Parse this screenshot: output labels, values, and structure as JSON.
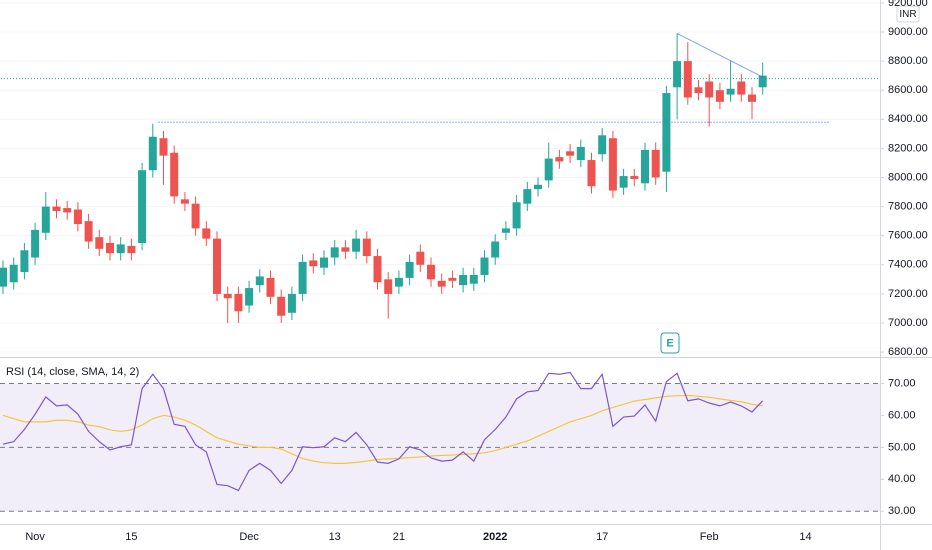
{
  "chart_data": {
    "type": "candlestick",
    "currency": "INR",
    "earnings_marker": "E",
    "categories": [
      null,
      null,
      null,
      "Nov",
      null,
      null,
      null,
      null,
      null,
      null,
      null,
      null,
      "15",
      null,
      null,
      null,
      null,
      null,
      null,
      null,
      null,
      null,
      null,
      "Dec",
      null,
      null,
      null,
      null,
      null,
      null,
      null,
      "13",
      null,
      null,
      null,
      null,
      null,
      "21",
      null,
      null,
      null,
      null,
      null,
      null,
      null,
      null,
      "2022",
      null,
      null,
      null,
      null,
      null,
      null,
      null,
      null,
      null,
      "17",
      null,
      null,
      null,
      null,
      null,
      null,
      null,
      null,
      null,
      "Feb",
      null,
      null,
      null,
      null,
      null,
      null,
      null,
      null,
      "14"
    ],
    "open": [
      7250,
      7280,
      7350,
      7450,
      7620,
      7800,
      7790,
      7780,
      7700,
      7590,
      7550,
      7480,
      7530,
      7550,
      8050,
      8270,
      8170,
      7850,
      7820,
      7650,
      7580,
      7200,
      7200,
      7120,
      7260,
      7310,
      7180,
      7070,
      7200,
      7430,
      7380,
      7450,
      7520,
      7490,
      7580,
      7460,
      7300,
      7250,
      7310,
      7490,
      7400,
      7290,
      7310,
      7260,
      7270,
      7330,
      7450,
      7620,
      7650,
      7820,
      7920,
      7980,
      8140,
      8180,
      8120,
      8120,
      8160,
      8270,
      7930,
      8010,
      7960,
      8190,
      8040,
      8620,
      8800,
      8620,
      8660,
      8600,
      8570,
      8660,
      8570,
      8620,
      null,
      null,
      null,
      null
    ],
    "high": [
      7430,
      7450,
      7550,
      7690,
      7900,
      7850,
      7840,
      7830,
      7750,
      7640,
      7600,
      7590,
      7580,
      8100,
      8370,
      8320,
      8220,
      7900,
      7870,
      7700,
      7630,
      7250,
      7250,
      7290,
      7370,
      7360,
      7230,
      7250,
      7470,
      7480,
      7500,
      7570,
      7570,
      7640,
      7630,
      7510,
      7350,
      7360,
      7470,
      7540,
      7450,
      7340,
      7360,
      7380,
      7380,
      7500,
      7610,
      7700,
      7880,
      7970,
      8000,
      8240,
      8190,
      8230,
      8260,
      8170,
      8340,
      8320,
      8060,
      8060,
      8240,
      8240,
      8630,
      8990,
      8930,
      8670,
      8710,
      8650,
      8800,
      8710,
      8620,
      8790,
      null,
      null,
      null,
      null
    ],
    "low": [
      7200,
      7230,
      7300,
      7400,
      7570,
      7720,
      7710,
      7630,
      7510,
      7460,
      7430,
      7430,
      7430,
      7500,
      8000,
      7950,
      7820,
      7770,
      7600,
      7530,
      7150,
      7000,
      7000,
      7070,
      7210,
      7130,
      7000,
      7020,
      7150,
      7340,
      7330,
      7400,
      7440,
      7440,
      7410,
      7230,
      7030,
      7200,
      7260,
      7350,
      7250,
      7200,
      7240,
      7210,
      7220,
      7280,
      7400,
      7570,
      7600,
      7770,
      7870,
      7930,
      8060,
      8100,
      8070,
      7890,
      8110,
      7860,
      7880,
      7940,
      7910,
      7950,
      7900,
      8400,
      8500,
      8530,
      8350,
      8470,
      8520,
      8520,
      8400,
      8570,
      null,
      null,
      null,
      null
    ],
    "close": [
      7380,
      7400,
      7500,
      7640,
      7800,
      7770,
      7760,
      7680,
      7560,
      7510,
      7480,
      7540,
      7480,
      8050,
      8280,
      8150,
      7870,
      7820,
      7650,
      7580,
      7200,
      7170,
      7080,
      7240,
      7320,
      7180,
      7050,
      7200,
      7420,
      7390,
      7450,
      7520,
      7490,
      7580,
      7460,
      7280,
      7200,
      7310,
      7420,
      7400,
      7300,
      7250,
      7290,
      7330,
      7330,
      7450,
      7560,
      7650,
      7830,
      7920,
      7950,
      8130,
      8110,
      8150,
      8210,
      7940,
      8290,
      7910,
      8010,
      7990,
      8190,
      8000,
      8580,
      8800,
      8550,
      8580,
      8550,
      8520,
      8610,
      8570,
      8520,
      8700,
      null,
      null,
      null,
      null
    ],
    "up_color": "#26a69a",
    "down_color": "#ef5350",
    "ylim": [
      6780,
      9220
    ],
    "yticks": [
      {
        "value": 6800,
        "label": "6800.00"
      },
      {
        "value": 7000,
        "label": "7000.00"
      },
      {
        "value": 7200,
        "label": "7200.00"
      },
      {
        "value": 7400,
        "label": "7400.00"
      },
      {
        "value": 7600,
        "label": "7600.00"
      },
      {
        "value": 7800,
        "label": "7800.00"
      },
      {
        "value": 8000,
        "label": "8000.00"
      },
      {
        "value": 8200,
        "label": "8200.00"
      },
      {
        "value": 8400,
        "label": "8400.00"
      },
      {
        "value": 8600,
        "label": "8600.00"
      },
      {
        "value": 8800,
        "label": "8800.00"
      },
      {
        "value": 9000,
        "label": "9000.00"
      },
      {
        "value": 9200,
        "label": "9200.00"
      }
    ],
    "horizontal_lines": [
      {
        "value": 8680,
        "color": "#26a69a",
        "from": 0
      },
      {
        "value": 8380,
        "color": "#2962ff",
        "from": 15
      }
    ],
    "trend_line": {
      "from": [
        63,
        8990
      ],
      "to": [
        71,
        8690
      ],
      "color": "#2962ff"
    },
    "rsi": {
      "title": "RSI (14, close, SMA, 14, 2)",
      "ylim": [
        26,
        78
      ],
      "yticks": [
        {
          "value": 30,
          "label": "30.00"
        },
        {
          "value": 40,
          "label": "40.00"
        },
        {
          "value": 50,
          "label": "50.00"
        },
        {
          "value": 60,
          "label": "60.00"
        },
        {
          "value": 70,
          "label": "70.00"
        }
      ],
      "band": [
        30,
        70
      ],
      "levels": [
        70,
        50,
        30
      ],
      "series": [
        {
          "name": "RSI",
          "color": "#7e57c2",
          "values": [
            51,
            51.8,
            55.6,
            60.4,
            65.8,
            63,
            63.3,
            60.4,
            55,
            51.8,
            49.2,
            50.2,
            50.8,
            68.4,
            72.9,
            68.4,
            57.2,
            56.6,
            50.8,
            48.6,
            38.4,
            38,
            36.5,
            42.8,
            45,
            42.8,
            38.7,
            42.8,
            50.2,
            49.9,
            50.2,
            53,
            51.8,
            54.7,
            50.8,
            45.4,
            45,
            46.4,
            50.2,
            49.2,
            46.7,
            45.7,
            46,
            48.6,
            45.7,
            52.4,
            55.6,
            59.5,
            65.2,
            67.4,
            67.8,
            73.2,
            72.9,
            73.5,
            68.4,
            68.4,
            72.9,
            56.6,
            59.5,
            59.8,
            63.3,
            58.2,
            70.6,
            73.2,
            64.6,
            65.2,
            63.9,
            63,
            64.2,
            63,
            61.1,
            64.6,
            null,
            null,
            null,
            null
          ]
        },
        {
          "name": "SMA",
          "color": "#f5c542",
          "values": [
            60,
            59,
            58,
            58,
            58,
            58.5,
            58.5,
            58,
            57,
            56.5,
            55.5,
            55,
            55.5,
            57,
            59,
            60,
            59.5,
            58.5,
            57,
            55,
            53,
            52,
            51,
            50.5,
            50,
            50,
            49.5,
            48,
            46.5,
            45.7,
            45.2,
            45,
            45,
            45.3,
            45.7,
            46.2,
            46.4,
            46.6,
            46.8,
            47,
            47.3,
            47.5,
            47.6,
            47.8,
            48,
            48.3,
            49,
            50,
            51,
            52,
            53.5,
            55,
            56.5,
            58,
            59,
            60,
            61.5,
            62.5,
            63.5,
            64.5,
            65,
            65.5,
            66,
            66.2,
            66.3,
            66,
            65.7,
            65.2,
            64.7,
            64.3,
            63.5,
            63,
            null,
            null,
            null,
            null
          ]
        }
      ]
    }
  }
}
